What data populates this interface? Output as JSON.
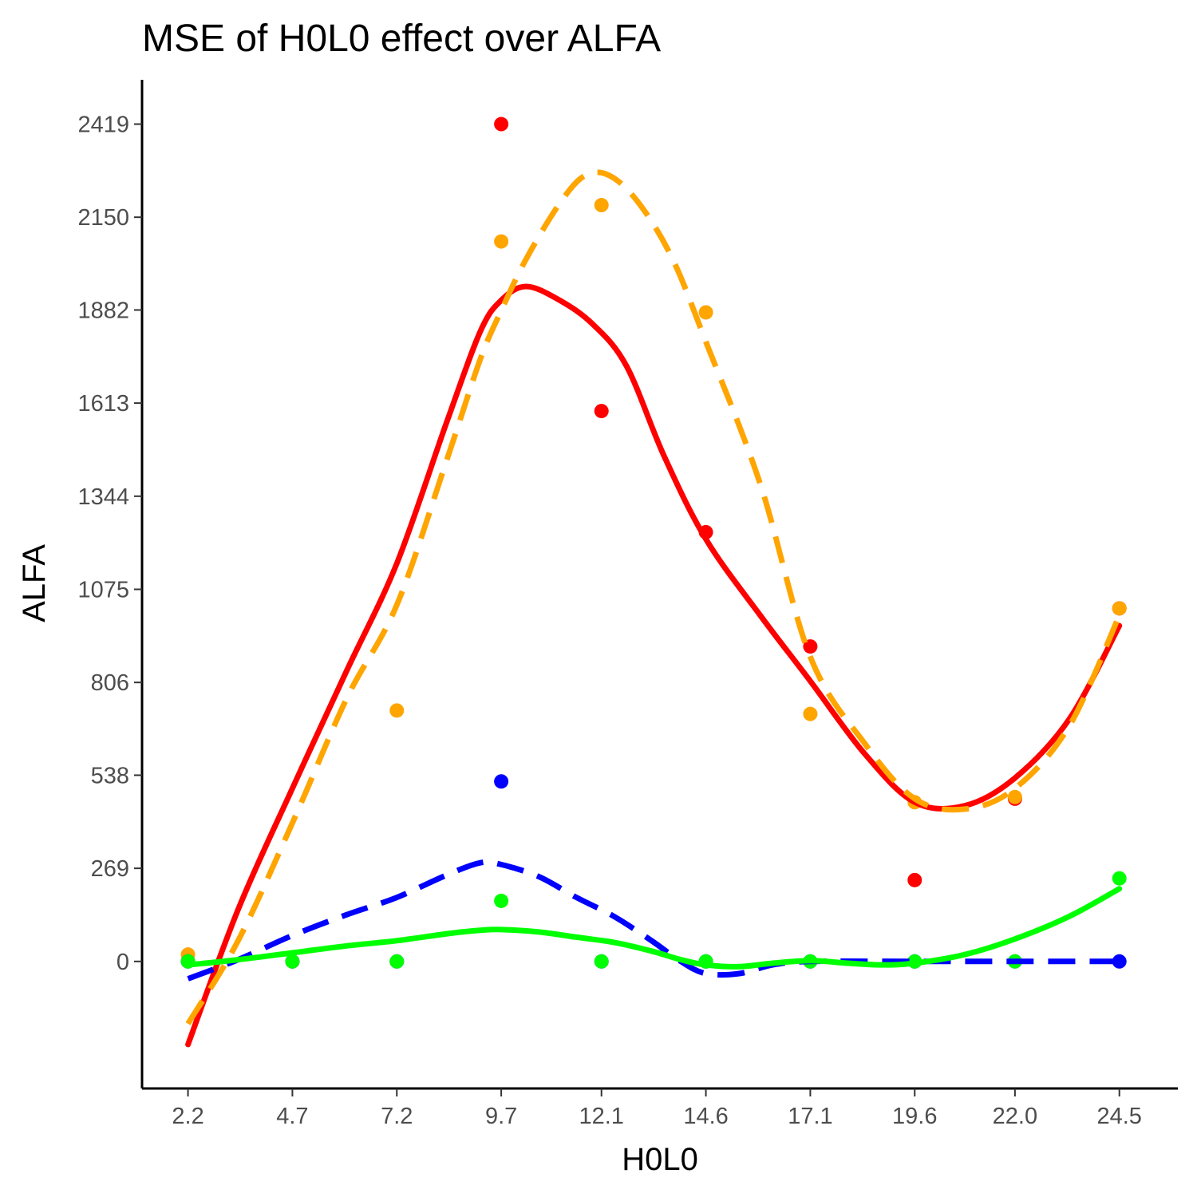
{
  "chart_data": {
    "type": "scatter",
    "title": "MSE of H0L0 effect over  ALFA",
    "xlabel": "H0L0",
    "ylabel": "ALFA",
    "x_ticks": [
      "2.2",
      "4.7",
      "7.2",
      "9.7",
      "12.1",
      "14.6",
      "17.1",
      "19.6",
      "22.0",
      "24.5"
    ],
    "y_ticks": [
      "0",
      "269",
      "538",
      "806",
      "1075",
      "1344",
      "1613",
      "1882",
      "2150",
      "2419"
    ],
    "xlim": [
      1.1,
      25.9
    ],
    "ylim": [
      -367,
      2547
    ],
    "grid": false,
    "legend": "none",
    "series": [
      {
        "color": "#FF0000",
        "line_style": "solid",
        "points": [
          [
            9.7,
            2419
          ],
          [
            12.1,
            1590
          ],
          [
            14.6,
            1240
          ],
          [
            17.1,
            910
          ],
          [
            19.6,
            235
          ],
          [
            22.0,
            470
          ],
          [
            24.5,
            1020
          ]
        ],
        "curve": [
          [
            2.2,
            -240
          ],
          [
            3.4,
            150
          ],
          [
            4.7,
            500
          ],
          [
            6.0,
            840
          ],
          [
            7.2,
            1150
          ],
          [
            8.4,
            1560
          ],
          [
            9.2,
            1820
          ],
          [
            9.7,
            1910
          ],
          [
            10.3,
            1950
          ],
          [
            11.1,
            1910
          ],
          [
            11.9,
            1840
          ],
          [
            12.7,
            1720
          ],
          [
            13.6,
            1460
          ],
          [
            14.6,
            1220
          ],
          [
            15.9,
            1000
          ],
          [
            17.1,
            810
          ],
          [
            18.4,
            600
          ],
          [
            19.6,
            460
          ],
          [
            20.8,
            450
          ],
          [
            22.0,
            530
          ],
          [
            23.3,
            700
          ],
          [
            24.5,
            970
          ]
        ]
      },
      {
        "color": "#FFA500",
        "line_style": "dashed",
        "points": [
          [
            2.2,
            20
          ],
          [
            4.7,
            0
          ],
          [
            7.2,
            725
          ],
          [
            9.7,
            2080
          ],
          [
            12.1,
            2185
          ],
          [
            14.6,
            1875
          ],
          [
            17.1,
            715
          ],
          [
            19.6,
            460
          ],
          [
            22.0,
            475
          ],
          [
            24.5,
            1020
          ]
        ],
        "curve": [
          [
            2.2,
            -180
          ],
          [
            3.4,
            60
          ],
          [
            4.7,
            400
          ],
          [
            6.0,
            760
          ],
          [
            7.2,
            1030
          ],
          [
            8.4,
            1450
          ],
          [
            9.2,
            1740
          ],
          [
            9.7,
            1880
          ],
          [
            10.3,
            2030
          ],
          [
            11.1,
            2190
          ],
          [
            11.7,
            2270
          ],
          [
            12.3,
            2270
          ],
          [
            13.0,
            2190
          ],
          [
            13.8,
            2030
          ],
          [
            14.6,
            1790
          ],
          [
            15.9,
            1380
          ],
          [
            17.1,
            880
          ],
          [
            18.4,
            630
          ],
          [
            19.6,
            470
          ],
          [
            20.8,
            440
          ],
          [
            22.0,
            500
          ],
          [
            23.3,
            680
          ],
          [
            24.5,
            1000
          ]
        ]
      },
      {
        "color": "#0000FF",
        "line_style": "dashed",
        "points": [
          [
            2.2,
            0
          ],
          [
            4.7,
            0
          ],
          [
            7.2,
            0
          ],
          [
            9.7,
            520
          ],
          [
            12.1,
            0
          ],
          [
            14.6,
            0
          ],
          [
            17.1,
            0
          ],
          [
            19.6,
            0
          ],
          [
            22.0,
            0
          ],
          [
            24.5,
            0
          ]
        ],
        "curve": [
          [
            2.2,
            -50
          ],
          [
            3.4,
            5
          ],
          [
            4.7,
            75
          ],
          [
            6.0,
            135
          ],
          [
            7.2,
            185
          ],
          [
            8.4,
            250
          ],
          [
            9.2,
            285
          ],
          [
            9.7,
            280
          ],
          [
            10.6,
            245
          ],
          [
            11.5,
            185
          ],
          [
            12.4,
            130
          ],
          [
            13.3,
            60
          ],
          [
            14.0,
            0
          ],
          [
            14.6,
            -35
          ],
          [
            15.4,
            -35
          ],
          [
            16.2,
            -10
          ],
          [
            17.1,
            0
          ],
          [
            19.6,
            0
          ],
          [
            22.0,
            0
          ],
          [
            24.5,
            0
          ]
        ]
      },
      {
        "color": "#00FF00",
        "line_style": "solid",
        "points": [
          [
            2.2,
            0
          ],
          [
            4.7,
            0
          ],
          [
            7.2,
            0
          ],
          [
            9.7,
            175
          ],
          [
            12.1,
            0
          ],
          [
            14.6,
            0
          ],
          [
            17.1,
            0
          ],
          [
            19.6,
            0
          ],
          [
            22.0,
            0
          ],
          [
            24.5,
            240
          ]
        ],
        "curve": [
          [
            2.2,
            -10
          ],
          [
            3.4,
            5
          ],
          [
            4.7,
            25
          ],
          [
            6.0,
            45
          ],
          [
            7.2,
            60
          ],
          [
            8.4,
            80
          ],
          [
            9.2,
            90
          ],
          [
            9.7,
            92
          ],
          [
            10.6,
            85
          ],
          [
            11.5,
            70
          ],
          [
            12.4,
            55
          ],
          [
            13.3,
            30
          ],
          [
            14.0,
            5
          ],
          [
            14.6,
            -10
          ],
          [
            15.4,
            -15
          ],
          [
            16.2,
            -5
          ],
          [
            17.1,
            2
          ],
          [
            18.0,
            -5
          ],
          [
            18.8,
            -10
          ],
          [
            19.6,
            -5
          ],
          [
            20.8,
            20
          ],
          [
            22.0,
            65
          ],
          [
            23.3,
            130
          ],
          [
            24.5,
            210
          ]
        ]
      }
    ]
  }
}
